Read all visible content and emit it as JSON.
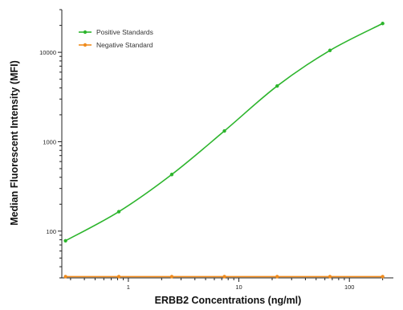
{
  "chart_data": {
    "type": "line",
    "title": "",
    "xlabel": "ERBB2 Concentrations (ng/ml)",
    "ylabel": "Median  Fluorescent Intensity  (MFI)",
    "x_scale": "log",
    "y_scale": "log",
    "xlim": [
      0.25,
      250
    ],
    "ylim": [
      30,
      30000
    ],
    "x_ticks": [
      1,
      10,
      100
    ],
    "y_ticks": [
      100,
      1000,
      10000
    ],
    "x_tick_labels": [
      "1",
      "10",
      "100"
    ],
    "y_tick_labels": [
      "100",
      "1000",
      "10000"
    ],
    "grid": false,
    "legend_position": "top-left",
    "series": [
      {
        "name": "Positive Standards",
        "color": "#2db52d",
        "x": [
          0.27,
          0.82,
          2.47,
          7.4,
          22.2,
          66.7,
          200
        ],
        "y": [
          78,
          165,
          430,
          1320,
          4200,
          10500,
          21000
        ],
        "curve": "fitted"
      },
      {
        "name": "Negative Standard",
        "color": "#f08c1e",
        "x": [
          0.27,
          0.82,
          2.47,
          7.4,
          22.2,
          66.7,
          200
        ],
        "y": [
          31,
          31,
          31,
          31,
          31,
          31,
          31
        ],
        "curve": "line"
      }
    ]
  }
}
